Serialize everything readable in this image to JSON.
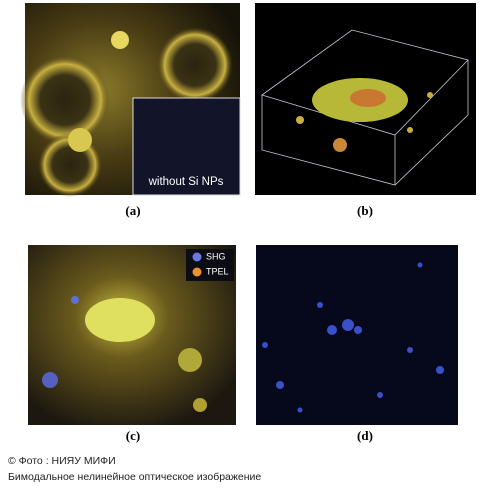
{
  "panels": [
    {
      "label": "(a)",
      "inset_text": "without Si NPs"
    },
    {
      "label": "(b)"
    },
    {
      "label": "(c)",
      "legend": [
        "SHG",
        "TPEL"
      ]
    },
    {
      "label": "(d)"
    }
  ],
  "caption": {
    "credit": "© Фото : НИЯУ МИФИ",
    "text": "Бимодальное нелинейное оптическое изображение"
  }
}
